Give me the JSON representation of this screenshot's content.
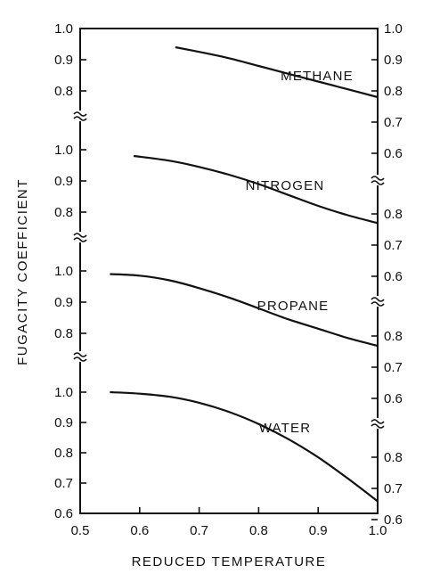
{
  "chart_data": {
    "type": "line",
    "xlabel": "REDUCED TEMPERATURE",
    "ylabel": "FUGACITY  COEFFICIENT",
    "xlim": [
      0.5,
      1.0
    ],
    "x_ticks": [
      "0.5",
      "0.6",
      "0.7",
      "0.8",
      "0.9",
      "1.0"
    ],
    "grid": false,
    "axis_break_symbol": "≈",
    "panels": [
      {
        "series_name": "METHANE",
        "ylim": [
          0.75,
          1.0
        ],
        "left_ticks": [
          "1.0",
          "0.9",
          "0.8"
        ],
        "right_ticks": [
          "1.0",
          "0.9",
          "0.8",
          "0.7",
          "0.6"
        ],
        "x": [
          0.66,
          0.7,
          0.75,
          0.8,
          0.85,
          0.9,
          0.95,
          1.0
        ],
        "y": [
          0.94,
          0.925,
          0.905,
          0.88,
          0.855,
          0.83,
          0.805,
          0.78
        ]
      },
      {
        "series_name": "NITROGEN",
        "ylim": [
          0.75,
          1.0
        ],
        "left_ticks": [
          "1.0",
          "0.9",
          "0.8"
        ],
        "right_ticks": [
          "0.8",
          "0.7",
          "0.6"
        ],
        "x": [
          0.59,
          0.65,
          0.7,
          0.75,
          0.8,
          0.85,
          0.9,
          0.95,
          1.0
        ],
        "y": [
          0.98,
          0.965,
          0.945,
          0.92,
          0.89,
          0.855,
          0.82,
          0.79,
          0.765
        ]
      },
      {
        "series_name": "PROPANE",
        "ylim": [
          0.75,
          1.0
        ],
        "left_ticks": [
          "1.0",
          "0.9",
          "0.8"
        ],
        "right_ticks": [
          "0.8",
          "0.7",
          "0.6"
        ],
        "x": [
          0.55,
          0.6,
          0.65,
          0.7,
          0.75,
          0.8,
          0.85,
          0.9,
          0.95,
          1.0
        ],
        "y": [
          0.99,
          0.985,
          0.97,
          0.945,
          0.915,
          0.88,
          0.845,
          0.815,
          0.785,
          0.76
        ]
      },
      {
        "series_name": "WATER",
        "ylim": [
          0.6,
          1.0
        ],
        "left_ticks": [
          "1.0",
          "0.9",
          "0.8",
          "0.7",
          "0.6"
        ],
        "right_ticks": [
          "0.8",
          "0.7",
          "0.6"
        ],
        "x": [
          0.55,
          0.6,
          0.65,
          0.7,
          0.75,
          0.8,
          0.85,
          0.9,
          0.95,
          1.0
        ],
        "y": [
          1.0,
          0.995,
          0.985,
          0.965,
          0.935,
          0.895,
          0.845,
          0.785,
          0.715,
          0.64
        ]
      }
    ]
  }
}
